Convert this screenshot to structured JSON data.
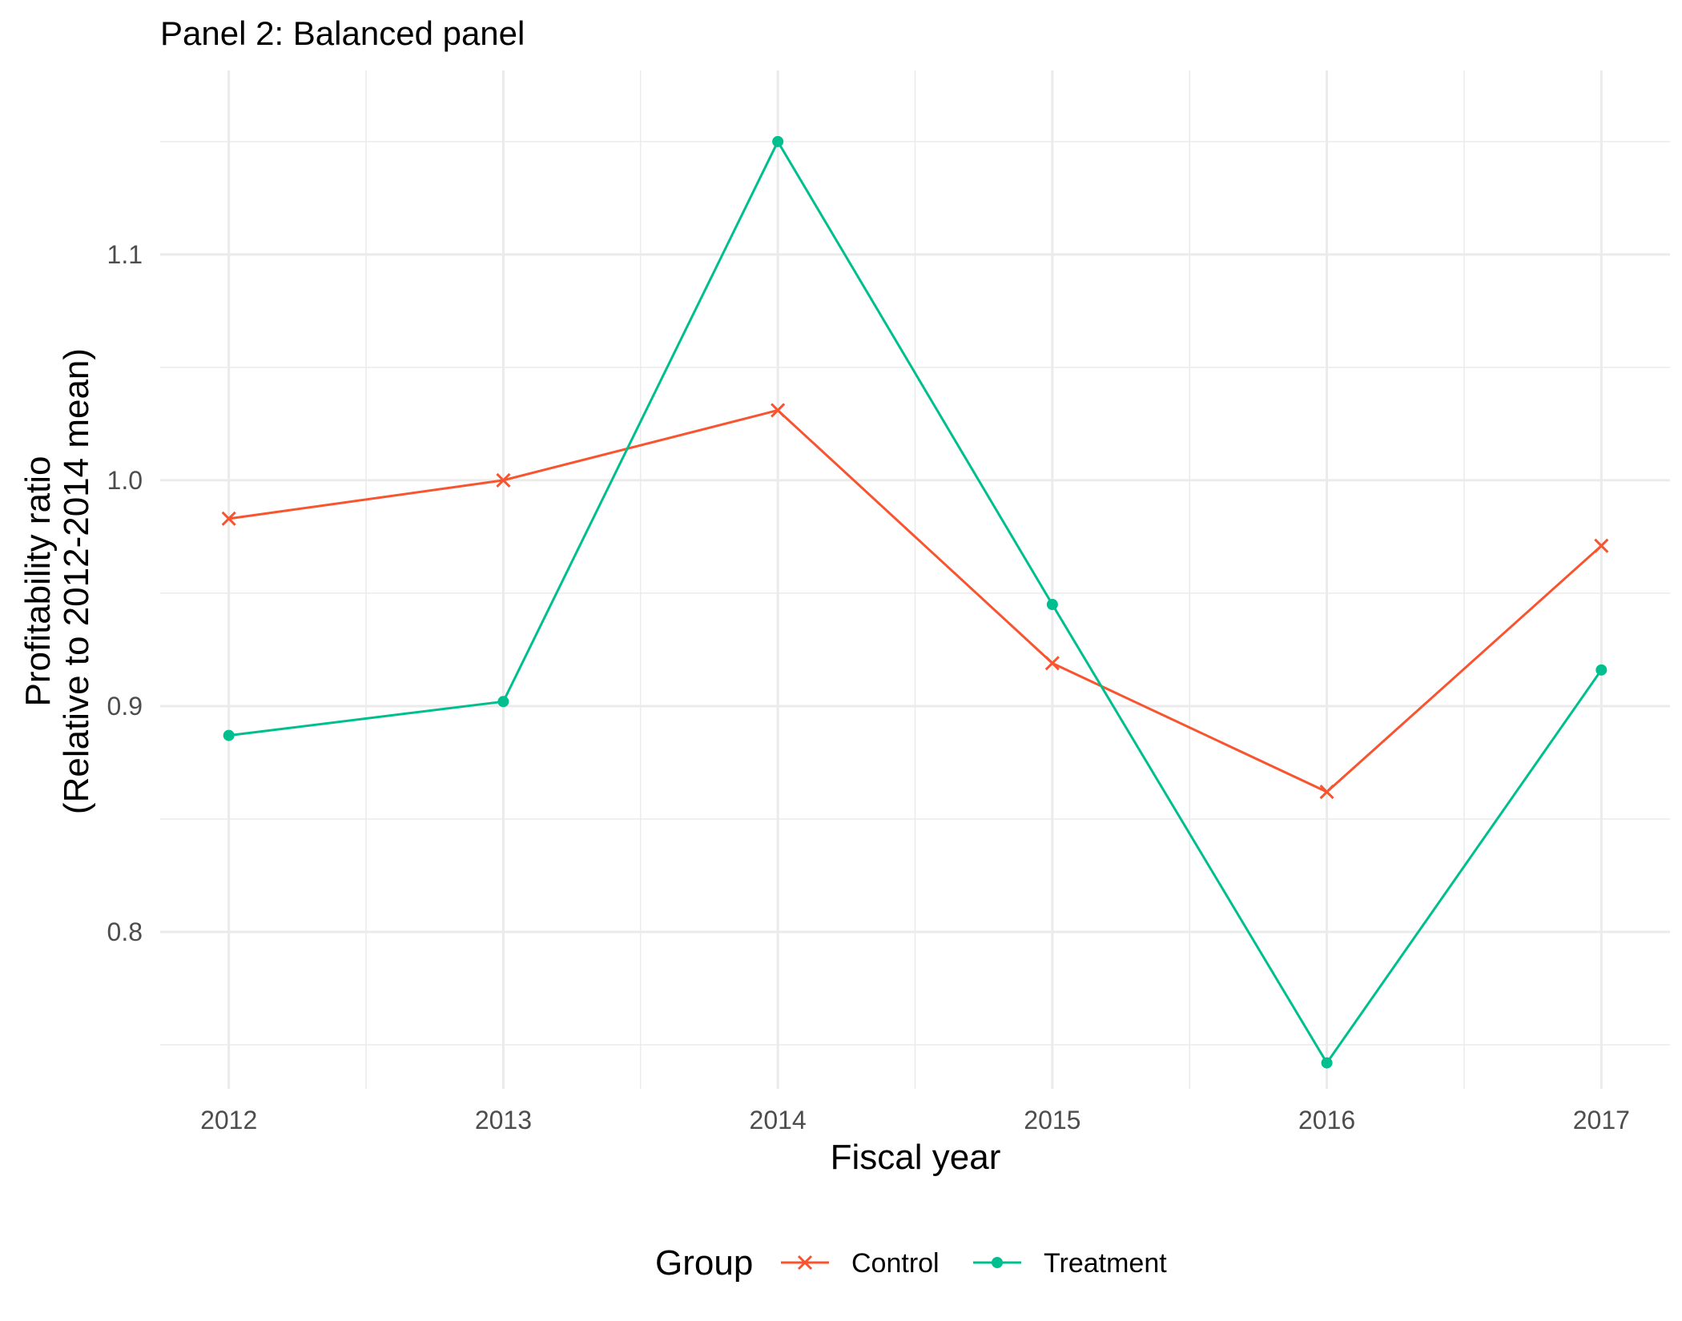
{
  "chart_data": {
    "type": "line",
    "title": "Panel 2: Balanced panel",
    "xlabel": "Fiscal year",
    "ylabel": [
      "Profitability ratio",
      "(Relative to 2012-2014 mean)"
    ],
    "x": [
      2012,
      2013,
      2014,
      2015,
      2016,
      2017
    ],
    "x_ticks": [
      "2012",
      "2013",
      "2014",
      "2015",
      "2016",
      "2017"
    ],
    "y_ticks": [
      "0.8",
      "0.9",
      "1.0",
      "1.1"
    ],
    "xlim": [
      2011.75,
      2017.25
    ],
    "ylim": [
      0.7305,
      1.1815
    ],
    "grid": true,
    "legend": {
      "title": "Group",
      "position": "bottom"
    },
    "series": [
      {
        "name": "Control",
        "color": "#F8542F",
        "marker": "x",
        "values": [
          0.983,
          1.0,
          1.031,
          0.919,
          0.862,
          0.971
        ]
      },
      {
        "name": "Treatment",
        "color": "#00BF8F",
        "marker": "circle",
        "values": [
          0.887,
          0.902,
          1.15,
          0.945,
          0.742,
          0.916
        ]
      }
    ]
  }
}
